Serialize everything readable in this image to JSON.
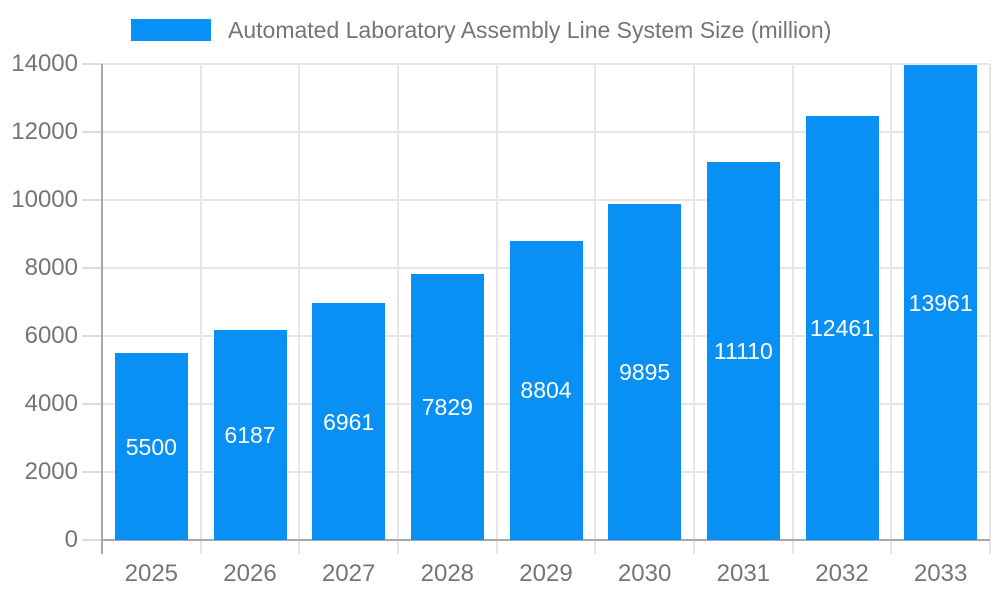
{
  "legend": {
    "label": "Automated Laboratory Assembly Line System Size (million)"
  },
  "chart_data": {
    "type": "bar",
    "title": "",
    "series_name": "Automated Laboratory Assembly Line System Size (million)",
    "categories": [
      "2025",
      "2026",
      "2027",
      "2028",
      "2029",
      "2030",
      "2031",
      "2032",
      "2033"
    ],
    "values": [
      5500,
      6187,
      6961,
      7829,
      8804,
      9895,
      11110,
      12461,
      13961
    ],
    "xlabel": "",
    "ylabel": "",
    "ylim": [
      0,
      14000
    ],
    "yticks": [
      0,
      2000,
      4000,
      6000,
      8000,
      10000,
      12000,
      14000
    ],
    "grid": true,
    "legend_position": "top",
    "bar_color": "#0990f5",
    "bar_label_color": "#ffffff",
    "grid_color": "#e6e6e6",
    "axis_color": "#a8a8a8",
    "tick_text_color": "#757575",
    "background_color": "#ffffff"
  }
}
